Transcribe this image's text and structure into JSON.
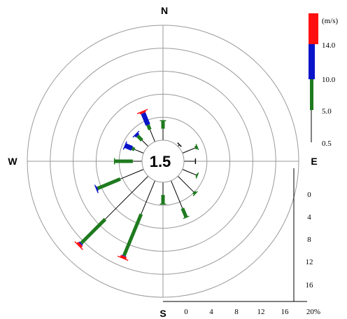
{
  "chart_data": {
    "type": "wind-rose",
    "directions": [
      "N",
      "E",
      "S",
      "W"
    ],
    "calm_value": "1.5",
    "radial_axis": {
      "unit": "%",
      "ticks": [
        "0",
        "4",
        "8",
        "12",
        "16",
        "20%"
      ],
      "range": [
        0,
        20
      ],
      "vertical_ticks": [
        "0",
        "4",
        "8",
        "12",
        "16"
      ]
    },
    "legend": {
      "unit": "(m/s)",
      "thresholds": [
        "14.0",
        "10.0",
        "5.0",
        "0.5"
      ],
      "bins": [
        {
          "range": "0.5-5.0",
          "color": "#000000"
        },
        {
          "range": "5.0-10.0",
          "color": "#1e7a1e"
        },
        {
          "range": "10.0-14.0",
          "color": "#0a14c8"
        },
        {
          "range": ">14.0",
          "color": "#ff1010"
        }
      ]
    },
    "spokes": [
      {
        "dir_deg": 0,
        "segs": [
          2.0,
          1.4,
          0,
          0
        ]
      },
      {
        "dir_deg": 22.5,
        "segs": [
          0,
          0,
          0,
          0
        ]
      },
      {
        "dir_deg": 45,
        "segs": [
          0.4,
          0,
          0,
          0
        ]
      },
      {
        "dir_deg": 67.5,
        "segs": [
          2.4,
          0.4,
          0,
          0
        ]
      },
      {
        "dir_deg": 90,
        "segs": [
          2.0,
          0,
          0,
          0
        ]
      },
      {
        "dir_deg": 112.5,
        "segs": [
          2.6,
          0.2,
          0,
          0
        ]
      },
      {
        "dir_deg": 135,
        "segs": [
          3.9,
          0.4,
          0,
          0
        ]
      },
      {
        "dir_deg": 157.5,
        "segs": [
          5.2,
          1.7,
          0,
          0
        ]
      },
      {
        "dir_deg": 180,
        "segs": [
          2.2,
          1.6,
          0,
          0
        ]
      },
      {
        "dir_deg": 202.5,
        "segs": [
          6.3,
          7.8,
          0.1,
          0.4
        ]
      },
      {
        "dir_deg": 225,
        "segs": [
          10.6,
          5.9,
          0.2,
          0.4
        ]
      },
      {
        "dir_deg": 247.5,
        "segs": [
          4.4,
          4.3,
          0.2,
          0
        ]
      },
      {
        "dir_deg": 270,
        "segs": [
          1.6,
          3.2,
          0,
          0
        ]
      },
      {
        "dir_deg": 292.5,
        "segs": [
          1.7,
          0.5,
          1.3,
          0
        ]
      },
      {
        "dir_deg": 315,
        "segs": [
          1.5,
          1.1,
          0.4,
          0
        ]
      },
      {
        "dir_deg": 337.5,
        "segs": [
          2.3,
          0.9,
          2.2,
          0.3
        ]
      }
    ]
  }
}
